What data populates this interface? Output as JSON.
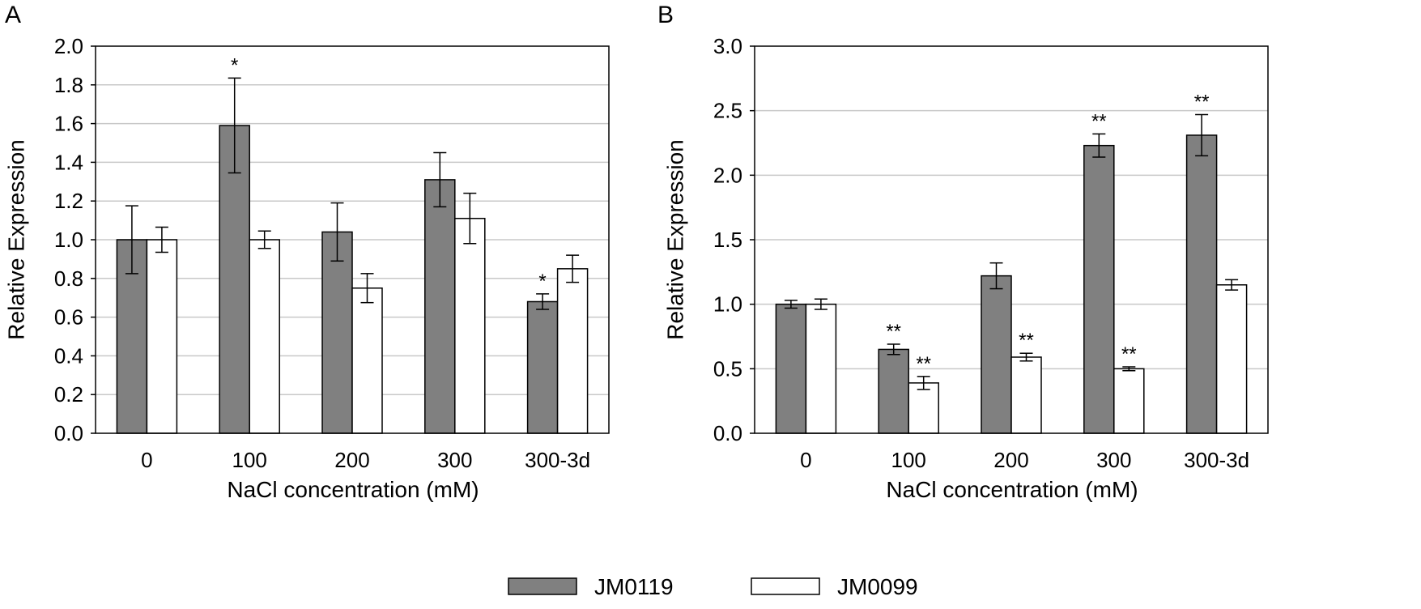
{
  "figure": {
    "legend": [
      {
        "name": "JM0119",
        "color": "#808080"
      },
      {
        "name": "JM0099",
        "color": "#ffffff"
      }
    ]
  },
  "chart_data": [
    {
      "type": "bar",
      "panel_label": "A",
      "title": "",
      "xlabel": "NaCl concentration (mM)",
      "ylabel": "Relative Expression",
      "ylim": [
        0,
        2.0
      ],
      "ytick_step": 0.2,
      "ytick_decimals": 1,
      "grid": true,
      "categories": [
        "0",
        "100",
        "200",
        "300",
        "300-3d"
      ],
      "series": [
        {
          "name": "JM0119",
          "color": "#808080",
          "values": [
            1.0,
            1.59,
            1.04,
            1.31,
            0.68
          ],
          "errors": [
            0.175,
            0.245,
            0.15,
            0.14,
            0.04
          ],
          "marks": [
            "",
            "*",
            "",
            "",
            "*"
          ]
        },
        {
          "name": "JM0099",
          "color": "#ffffff",
          "values": [
            1.0,
            1.0,
            0.75,
            1.11,
            0.85
          ],
          "errors": [
            0.065,
            0.045,
            0.075,
            0.13,
            0.07
          ],
          "marks": [
            "",
            "",
            "",
            "",
            ""
          ]
        }
      ]
    },
    {
      "type": "bar",
      "panel_label": "B",
      "title": "",
      "xlabel": "NaCl concentration (mM)",
      "ylabel": "Relative Expression",
      "ylim": [
        0,
        3.0
      ],
      "ytick_step": 0.5,
      "ytick_decimals": 1,
      "grid": true,
      "categories": [
        "0",
        "100",
        "200",
        "300",
        "300-3d"
      ],
      "series": [
        {
          "name": "JM0119",
          "color": "#808080",
          "values": [
            1.0,
            0.65,
            1.22,
            2.23,
            2.31
          ],
          "errors": [
            0.03,
            0.04,
            0.1,
            0.09,
            0.16
          ],
          "marks": [
            "",
            "**",
            "",
            "**",
            "**"
          ]
        },
        {
          "name": "JM0099",
          "color": "#ffffff",
          "values": [
            1.0,
            0.39,
            0.59,
            0.5,
            1.15
          ],
          "errors": [
            0.04,
            0.05,
            0.03,
            0.015,
            0.04
          ],
          "marks": [
            "",
            "**",
            "**",
            "**",
            ""
          ]
        }
      ]
    }
  ]
}
